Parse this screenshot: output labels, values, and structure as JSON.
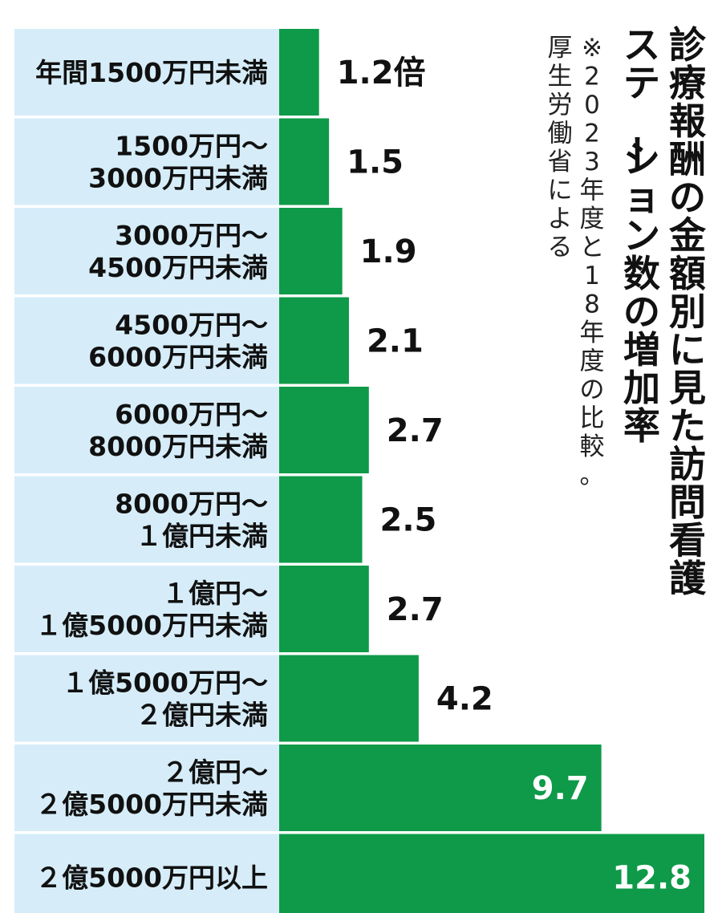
{
  "chart_data": {
    "type": "bar",
    "orientation": "horizontal",
    "title": "診療報酬の金額別に見た訪問看護ステーション数の増加率",
    "title_lines": [
      "診療報酬の金額別に見た訪問看護",
      "ステーション数の増加率"
    ],
    "note_lines": [
      "※2023年度と18年度の比較。",
      "厚生労働省による"
    ],
    "value_unit": "倍",
    "categories": [
      [
        "年間1500万円未満"
      ],
      [
        "1500万円～",
        "3000万円未満"
      ],
      [
        "3000万円～",
        "4500万円未満"
      ],
      [
        "4500万円～",
        "6000万円未満"
      ],
      [
        "6000万円～",
        "8000万円未満"
      ],
      [
        "8000万円～",
        "１億円未満"
      ],
      [
        "１億円～",
        "１億5000万円未満"
      ],
      [
        "１億5000万円～",
        "２億円未満"
      ],
      [
        "２億円～",
        "２億5000万円未満"
      ],
      [
        "２億5000万円以上"
      ]
    ],
    "value_labels": [
      "1.2倍",
      "1.5",
      "1.9",
      "2.1",
      "2.7",
      "2.5",
      "2.7",
      "4.2",
      "9.7",
      "12.8"
    ],
    "values": [
      1.2,
      1.5,
      1.9,
      2.1,
      2.7,
      2.5,
      2.7,
      4.2,
      9.7,
      12.8
    ],
    "xlim": [
      0,
      12.8
    ],
    "grid": false,
    "legend": "none",
    "colors": {
      "bar": "#0e9a48",
      "label_band": "#d6edf9",
      "value_text_outside": "#111111",
      "value_text_inside": "#ffffff"
    }
  }
}
